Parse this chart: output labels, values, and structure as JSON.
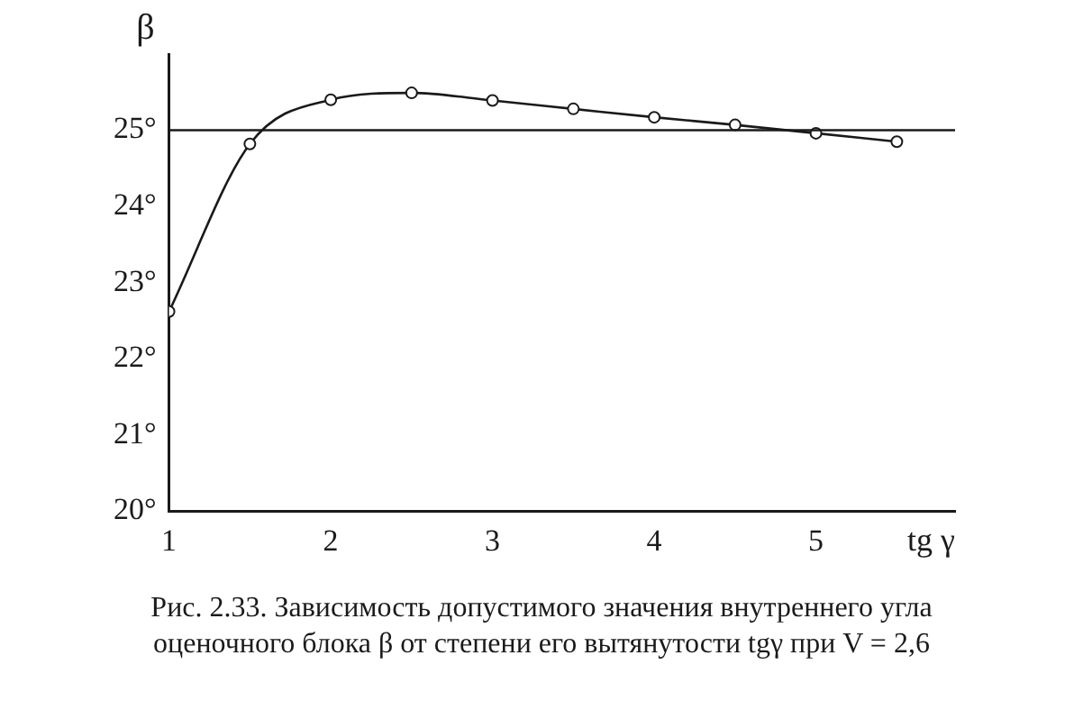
{
  "chart_data": {
    "type": "line",
    "xlabel": "tg γ",
    "ylabel": "β",
    "annotations": [
      "Рис. 2.33. Зависимость допустимого значения внутреннего угла оценочного блока β от степени его вытянутости tgγ при V = 2,6"
    ],
    "x": [
      1,
      1.5,
      2,
      2.5,
      3,
      3.5,
      4,
      4.5,
      5,
      5.5
    ],
    "series": [
      {
        "color": "#1a1a1a",
        "values": [
          22.62,
          24.82,
          25.4,
          25.49,
          25.39,
          25.28,
          25.17,
          25.07,
          24.96,
          24.85
        ]
      }
    ],
    "xlim": [
      1,
      5.86
    ],
    "xticks": [
      1,
      2,
      3,
      4,
      5
    ],
    "ylim": [
      20,
      26
    ],
    "yticks": [
      {
        "value": 20,
        "label": "20°"
      },
      {
        "value": 21,
        "label": "21°"
      },
      {
        "value": 22,
        "label": "22°"
      },
      {
        "value": 23,
        "label": "23°"
      },
      {
        "value": 24,
        "label": "24°"
      },
      {
        "value": 25,
        "label": "25°"
      }
    ],
    "ref_lines": [
      {
        "axis": "y",
        "value": 25,
        "color": "#1a1a1a"
      }
    ],
    "marker": "circle",
    "line_style": "solid",
    "grid": false,
    "legend": false
  }
}
